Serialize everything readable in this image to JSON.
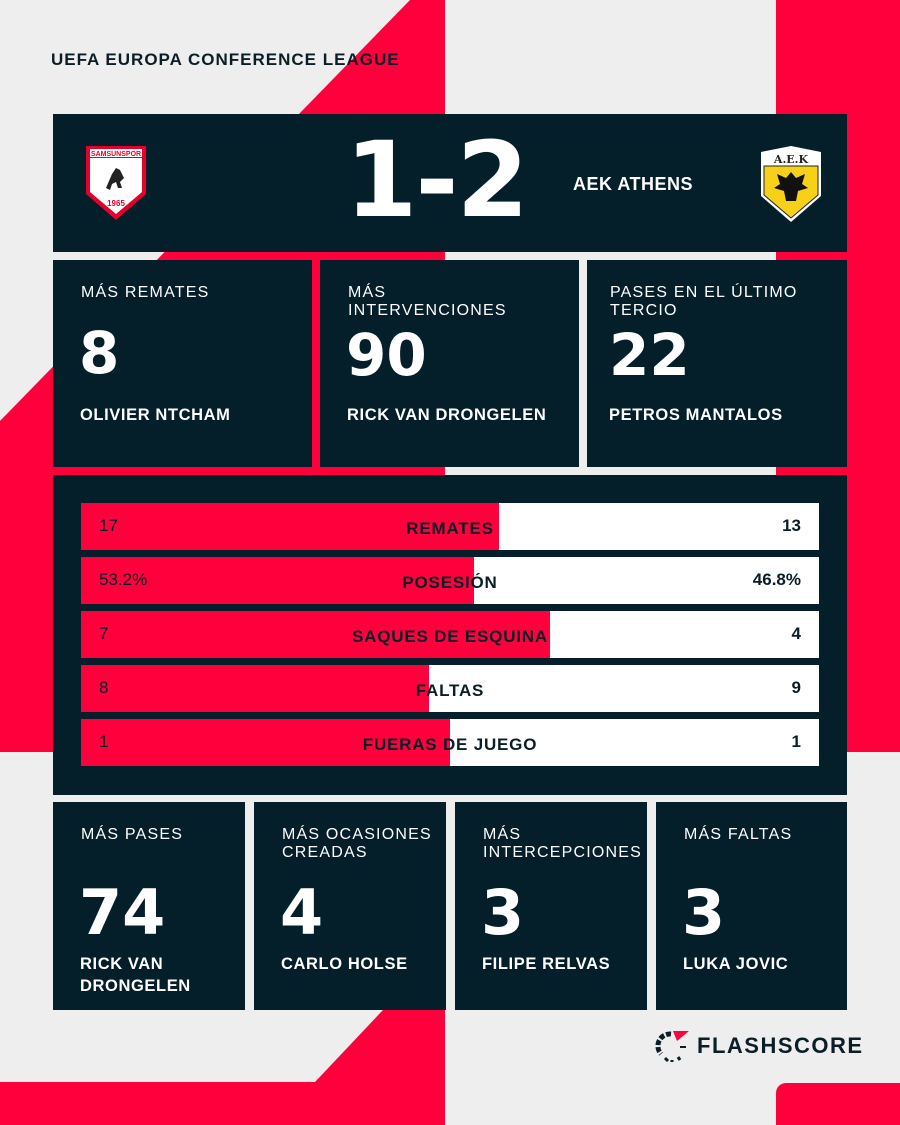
{
  "competition": "UEFA EUROPA CONFERENCE LEAGUE",
  "colors": {
    "accent": "#ff003c",
    "panel": "#041f2a",
    "background": "#eeeeee"
  },
  "match": {
    "home_team_crest": "Samsunspor crest",
    "home_crest_text": [
      "SAMSUNSPOR",
      "1965"
    ],
    "score": "1-2",
    "away_team": "AEK ATHENS",
    "away_team_crest": "AEK crest",
    "away_crest_text": "A.E.K"
  },
  "top_leaders": [
    {
      "label": "MÁS REMATES",
      "value": "8",
      "player": "OLIVIER NTCHAM"
    },
    {
      "label": "MÁS INTERVENCIONES",
      "value": "90",
      "player": "RICK VAN DRONGELEN"
    },
    {
      "label": "PASES EN EL ÚLTIMO TERCIO",
      "value": "22",
      "player": "PETROS MANTALOS"
    }
  ],
  "stats": [
    {
      "name": "REMATES",
      "home": "17",
      "away": "13",
      "home_share": 0.567
    },
    {
      "name": "POSESIÓN",
      "home": "53.2%",
      "away": "46.8%",
      "home_share": 0.532
    },
    {
      "name": "SAQUES DE ESQUINA",
      "home": "7",
      "away": "4",
      "home_share": 0.636
    },
    {
      "name": "FALTAS",
      "home": "8",
      "away": "9",
      "home_share": 0.471
    },
    {
      "name": "FUERAS DE JUEGO",
      "home": "1",
      "away": "1",
      "home_share": 0.5
    }
  ],
  "bottom_leaders": [
    {
      "label": "MÁS PASES",
      "value": "74",
      "player": "RICK VAN DRONGELEN"
    },
    {
      "label": "MÁS OCASIONES CREADAS",
      "value": "4",
      "player": "CARLO HOLSE"
    },
    {
      "label": "MÁS INTERCEPCIONES",
      "value": "3",
      "player": "FILIPE RELVAS"
    },
    {
      "label": "MÁS FALTAS",
      "value": "3",
      "player": "LUKA JOVIC"
    }
  ],
  "brand": "FLASHSCORE"
}
